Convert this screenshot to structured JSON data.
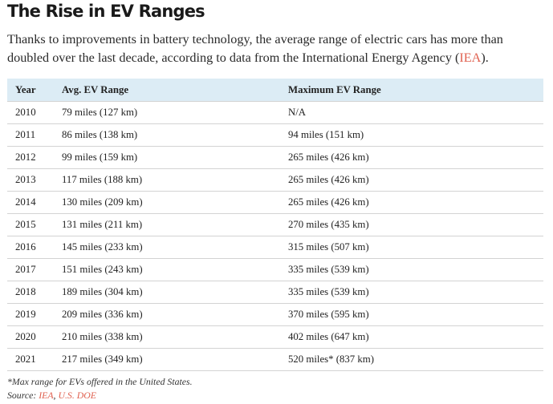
{
  "title": "The Rise in EV Ranges",
  "intro": {
    "text_before_link": "Thanks to improvements in battery technology, the average range of electric cars has more than doubled over the last decade, according to data from the International Energy Agency (",
    "link_text": "IEA",
    "text_after_link": ")."
  },
  "colors": {
    "header_background": "#dcecf5",
    "link": "#e0604f",
    "row_divider": "#d3d3d3"
  },
  "table": {
    "headers": [
      "Year",
      "Avg. EV Range",
      "Maximum EV Range"
    ],
    "rows": [
      [
        "2010",
        "79 miles (127 km)",
        "N/A"
      ],
      [
        "2011",
        "86 miles (138 km)",
        "94 miles (151 km)"
      ],
      [
        "2012",
        "99 miles (159 km)",
        "265 miles (426 km)"
      ],
      [
        "2013",
        "117 miles (188 km)",
        "265 miles (426 km)"
      ],
      [
        "2014",
        "130 miles (209 km)",
        "265 miles (426 km)"
      ],
      [
        "2015",
        "131 miles (211 km)",
        "270 miles (435 km)"
      ],
      [
        "2016",
        "145 miles (233 km)",
        "315 miles (507 km)"
      ],
      [
        "2017",
        "151 miles (243 km)",
        "335 miles (539 km)"
      ],
      [
        "2018",
        "189 miles (304 km)",
        "335 miles (539 km)"
      ],
      [
        "2019",
        "209 miles (336 km)",
        "370 miles (595 km)"
      ],
      [
        "2020",
        "210 miles (338 km)",
        "402 miles (647 km)"
      ],
      [
        "2021",
        "217 miles (349 km)",
        "520 miles* (837 km)"
      ]
    ]
  },
  "footnote": "*Max range for EVs offered in the United States.",
  "source": {
    "label": "Source: ",
    "links": [
      "IEA",
      "U.S. DOE"
    ],
    "separator": ", "
  }
}
